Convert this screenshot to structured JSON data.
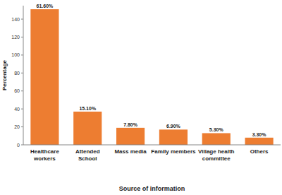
{
  "chart_data": {
    "type": "bar",
    "x_label": "Source of information",
    "y_label": "Percentage",
    "categories": [
      "Healthcare workers",
      "Attended School",
      "Mass media",
      "Family members",
      "Village health committee",
      "Others"
    ],
    "values": [
      151,
      37,
      19,
      17,
      13,
      8
    ],
    "percent_labels": [
      "61.60%",
      "15.10%",
      "7.80%",
      "6.90%",
      "5.30%",
      "3.30%"
    ],
    "color": "#ed7d31",
    "ylim": [
      0,
      155
    ],
    "yticks": [
      0,
      20,
      40,
      60,
      80,
      100,
      120,
      140
    ],
    "grid": false
  }
}
